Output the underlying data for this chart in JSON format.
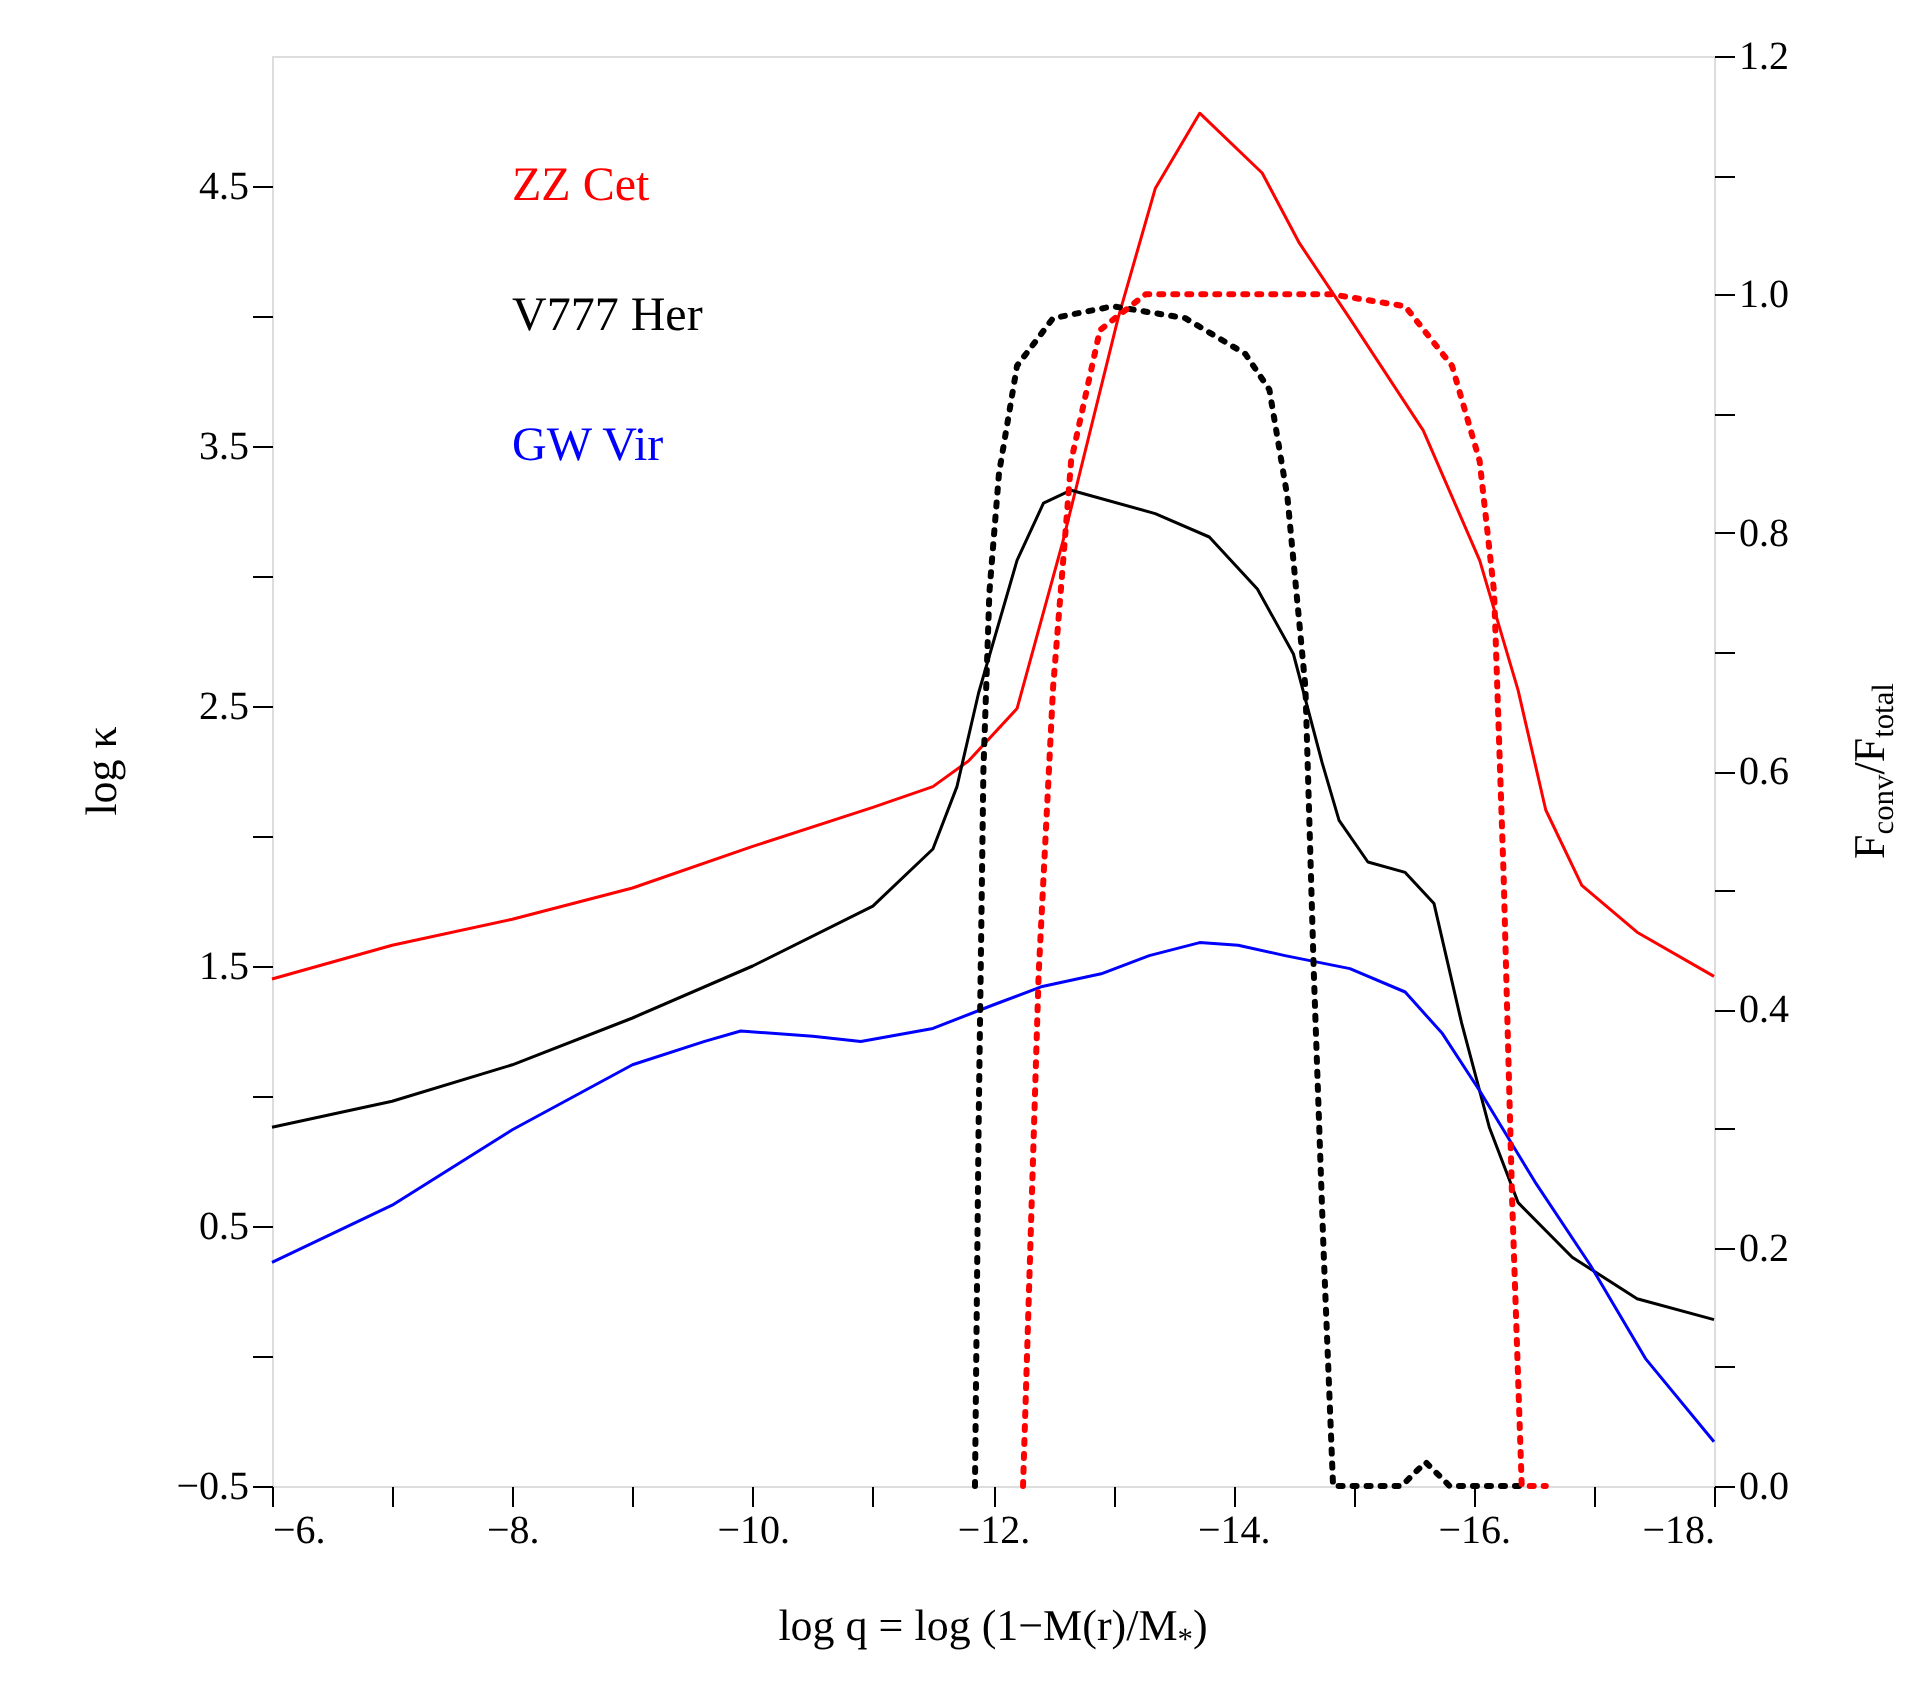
{
  "chart_data": {
    "type": "line",
    "xlabel": "log q = log (1−M(r)/M$_{*}$)",
    "ylabel": "log κ",
    "y2label": "F$_{conv}$/F$_{total}$",
    "xlim": [
      -6,
      -18
    ],
    "xticks": [
      {
        "value": -6,
        "label": "−6."
      },
      {
        "value": -7,
        "label": null
      },
      {
        "value": -8,
        "label": "−8."
      },
      {
        "value": -9,
        "label": null
      },
      {
        "value": -10,
        "label": "−10."
      },
      {
        "value": -11,
        "label": null
      },
      {
        "value": -12,
        "label": "−12."
      },
      {
        "value": -13,
        "label": null
      },
      {
        "value": -14,
        "label": "−14."
      },
      {
        "value": -15,
        "label": null
      },
      {
        "value": -16,
        "label": "−16."
      },
      {
        "value": -17,
        "label": null
      },
      {
        "value": -18,
        "label": "−18."
      }
    ],
    "ylim": [
      -0.5,
      5.0
    ],
    "yticks": [
      {
        "value": -0.5,
        "label": "−0.5"
      },
      {
        "value": 0,
        "label": null
      },
      0.5,
      {
        "value": 1,
        "label": null
      },
      1.5,
      {
        "value": 2,
        "label": null
      },
      2.5,
      {
        "value": 3,
        "label": null
      },
      3.5,
      {
        "value": 4,
        "label": null
      },
      4.5
    ],
    "y2lim": [
      0,
      1.2
    ],
    "y2ticks": [
      {
        "value": 0,
        "label": "0.0"
      },
      {
        "value": 0.1,
        "label": null
      },
      0.2,
      {
        "value": 0.3,
        "label": null
      },
      0.4,
      {
        "value": 0.5,
        "label": null
      },
      0.6,
      {
        "value": 0.7,
        "label": null
      },
      0.8,
      {
        "value": 0.9,
        "label": null
      },
      {
        "value": 1.0,
        "label": "1.0"
      },
      {
        "value": 1.1,
        "label": null
      },
      1.2
    ],
    "grid": false,
    "legend": "top left",
    "series": [
      {
        "name": "ZZ Cet",
        "color": "#ff0000",
        "line_style": "solid",
        "x": [
          -6,
          -7,
          -8,
          -9,
          -10,
          -11,
          -11.5,
          -11.8,
          -12.2,
          -12.58,
          -13.04,
          -13.35,
          -13.72,
          -14.24,
          -14.55,
          -14.97,
          -15.58,
          -16.05,
          -16.37,
          -16.6,
          -16.9,
          -17.36,
          -18
        ],
        "values": [
          1.45,
          1.58,
          1.68,
          1.8,
          1.96,
          2.11,
          2.19,
          2.29,
          2.49,
          3.13,
          3.99,
          4.49,
          4.78,
          4.55,
          4.28,
          3.99,
          3.56,
          3.06,
          2.56,
          2.1,
          1.81,
          1.63,
          1.46
        ]
      },
      {
        "name": "V777 Her",
        "color": "#000000",
        "line_style": "solid",
        "x": [
          -6,
          -7,
          -8,
          -9,
          -10,
          -11,
          -11.5,
          -11.7,
          -11.88,
          -12.2,
          -12.42,
          -12.65,
          -13.35,
          -13.8,
          -14.2,
          -14.5,
          -14.74,
          -14.88,
          -15.12,
          -15.43,
          -15.67,
          -15.9,
          -16.13,
          -16.37,
          -16.82,
          -17.36,
          -18
        ],
        "values": [
          0.88,
          0.98,
          1.12,
          1.3,
          1.5,
          1.73,
          1.95,
          2.19,
          2.55,
          3.06,
          3.28,
          3.33,
          3.24,
          3.15,
          2.95,
          2.7,
          2.28,
          2.06,
          1.9,
          1.86,
          1.74,
          1.28,
          0.88,
          0.59,
          0.38,
          0.22,
          0.14
        ]
      },
      {
        "name": "GW Vir",
        "color": "#0000ff",
        "line_style": "solid",
        "x": [
          -6,
          -7,
          -8,
          -9,
          -9.6,
          -9.9,
          -10.5,
          -10.9,
          -11.5,
          -12,
          -12.4,
          -12.9,
          -13.3,
          -13.72,
          -14.04,
          -14.43,
          -14.97,
          -15.43,
          -15.74,
          -16.05,
          -16.51,
          -16.97,
          -17.43,
          -18
        ],
        "values": [
          0.36,
          0.58,
          0.87,
          1.12,
          1.21,
          1.25,
          1.23,
          1.21,
          1.26,
          1.35,
          1.42,
          1.47,
          1.54,
          1.59,
          1.58,
          1.54,
          1.49,
          1.4,
          1.24,
          1.02,
          0.67,
          0.35,
          -0.01,
          -0.33
        ]
      },
      {
        "color": "#000000",
        "line_style": "dotted",
        "axis": "y2",
        "x": [
          -11.85,
          -11.88,
          -11.92,
          -11.97,
          -12.05,
          -12.2,
          -12.5,
          -13.0,
          -13.6,
          -14.1,
          -14.3,
          -14.45,
          -14.6,
          -14.67,
          -14.75,
          -14.83,
          -15.4,
          -15.6,
          -15.8,
          -16.45
        ],
        "values": [
          0.0,
          0.3,
          0.6,
          0.75,
          0.85,
          0.94,
          0.98,
          0.99,
          0.98,
          0.95,
          0.92,
          0.83,
          0.67,
          0.43,
          0.2,
          0.0,
          0.0,
          0.02,
          0.0,
          0.0
        ]
      },
      {
        "color": "#ff0000",
        "line_style": "dotted",
        "axis": "y2",
        "x": [
          -12.25,
          -12.38,
          -12.5,
          -12.65,
          -12.89,
          -13.27,
          -14.04,
          -14.82,
          -15.43,
          -15.82,
          -16.05,
          -16.17,
          -16.25,
          -16.32,
          -16.4,
          -16.6
        ],
        "values": [
          0.0,
          0.43,
          0.67,
          0.86,
          0.97,
          1.0,
          1.0,
          1.0,
          0.99,
          0.94,
          0.86,
          0.75,
          0.51,
          0.24,
          0.0,
          0.0
        ]
      }
    ]
  }
}
